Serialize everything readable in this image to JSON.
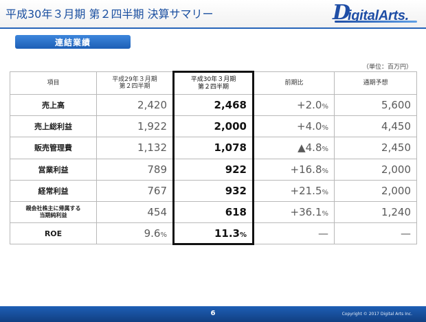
{
  "header": {
    "title": "平成30年３月期 第２四半期 決算サマリー",
    "logo_first": "D",
    "logo_rest": "igitalArts."
  },
  "section": {
    "label": "連結業績"
  },
  "unit_note": "（単位：百万円）",
  "table": {
    "headers": {
      "item": "項目",
      "prev_line1": "平成29年３月期",
      "prev_line2": "第２四半期",
      "cur_line1": "平成30年３月期",
      "cur_line2": "第２四半期",
      "yoy": "前期比",
      "forecast": "通期予想"
    },
    "rows": [
      {
        "item": "売上高",
        "prev": "2,420",
        "cur": "2,468",
        "yoy": "+2.0",
        "forecast": "5,600"
      },
      {
        "item": "売上総利益",
        "prev": "1,922",
        "cur": "2,000",
        "yoy": "+4.0",
        "forecast": "4,450"
      },
      {
        "item": "販売管理費",
        "prev": "1,132",
        "cur": "1,078",
        "yoy": "▲4.8",
        "forecast": "2,450"
      },
      {
        "item": "営業利益",
        "prev": "789",
        "cur": "922",
        "yoy": "+16.8",
        "forecast": "2,000"
      },
      {
        "item": "経常利益",
        "prev": "767",
        "cur": "932",
        "yoy": "+21.5",
        "forecast": "2,000"
      },
      {
        "item_line1": "親会社株主に帰属する",
        "item_line2": "当期純利益",
        "prev": "454",
        "cur": "618",
        "yoy": "+36.1",
        "forecast": "1,240"
      },
      {
        "item": "ROE",
        "prev": "9.6",
        "cur": "11.3",
        "yoy": "—",
        "forecast": "—"
      }
    ],
    "pct_sign": "%"
  },
  "footer": {
    "page": "6",
    "copyright": "Copyright © 2017 Digital Arts Inc."
  }
}
